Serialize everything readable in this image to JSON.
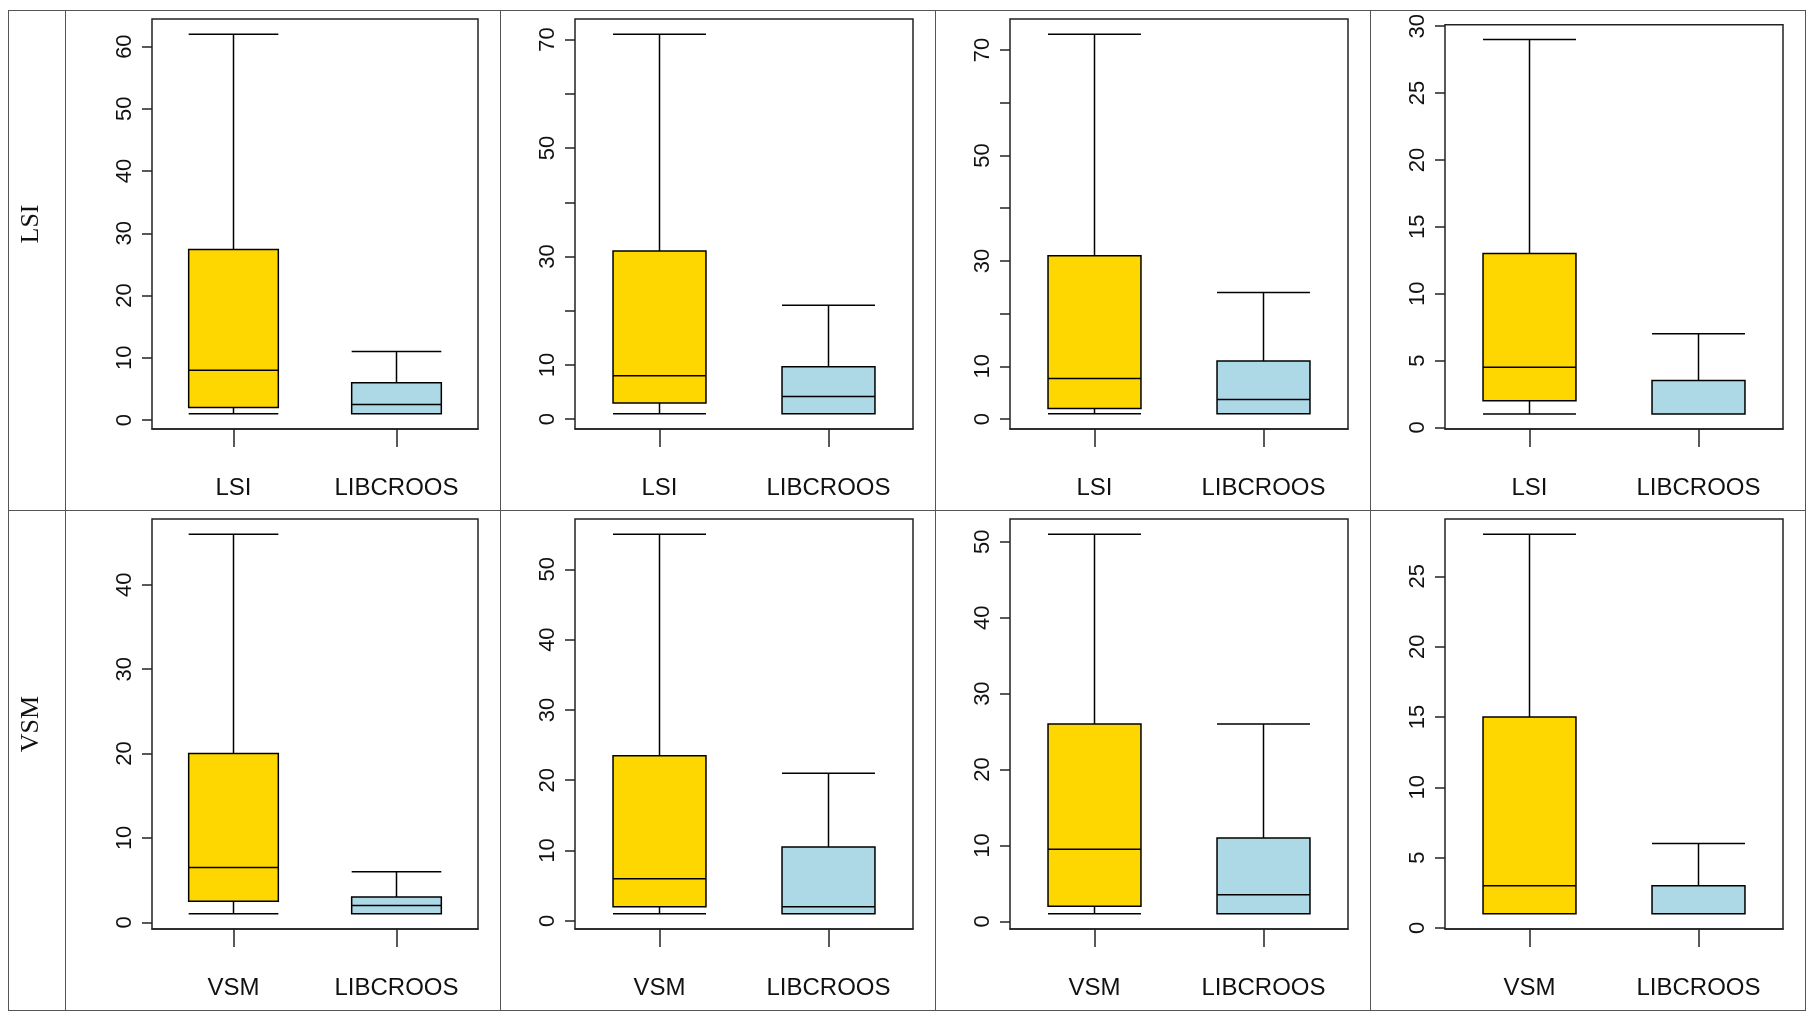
{
  "chart_data": [
    {
      "type": "box",
      "ylabel": "LSI",
      "categories": [
        "LSI",
        "LIBCROOS"
      ],
      "colors": [
        "#ffd700",
        "#add8e6"
      ],
      "ylim": [
        -1.44,
        64.44
      ],
      "yticks": [
        0,
        10,
        20,
        30,
        40,
        50,
        60
      ],
      "boxes": [
        {
          "low": 1,
          "q1": 2,
          "median": 8,
          "q3": 27.4,
          "high": 62
        },
        {
          "low": 1,
          "q1": 1,
          "median": 2.5,
          "q3": 6,
          "high": 11
        }
      ]
    },
    {
      "type": "box",
      "categories": [
        "LSI",
        "LIBCROOS"
      ],
      "colors": [
        "#ffd700",
        "#add8e6"
      ],
      "ylim": [
        -1.8,
        73.8
      ],
      "yticks": [
        0,
        10,
        {
          "value": 20,
          "label": null
        },
        30,
        {
          "value": 40,
          "label": null
        },
        50,
        {
          "value": 60,
          "label": null
        },
        70
      ],
      "boxes": [
        {
          "low": 1,
          "q1": 3,
          "median": 8,
          "q3": 31,
          "high": 71
        },
        {
          "low": 1,
          "q1": 1,
          "median": 4.2,
          "q3": 9.7,
          "high": 21
        }
      ]
    },
    {
      "type": "box",
      "categories": [
        "LSI",
        "LIBCROOS"
      ],
      "colors": [
        "#ffd700",
        "#add8e6"
      ],
      "ylim": [
        -1.88,
        75.88
      ],
      "yticks": [
        0,
        10,
        {
          "value": 20,
          "label": null
        },
        30,
        {
          "value": 40,
          "label": null
        },
        50,
        {
          "value": 60,
          "label": null
        },
        70
      ],
      "boxes": [
        {
          "low": 1,
          "q1": 2,
          "median": 7.7,
          "q3": 31,
          "high": 73
        },
        {
          "low": 1,
          "q1": 1,
          "median": 3.7,
          "q3": 11,
          "high": 24
        }
      ]
    },
    {
      "type": "box",
      "categories": [
        "LSI",
        "LIBCROOS"
      ],
      "colors": [
        "#ffd700",
        "#add8e6"
      ],
      "ylim": [
        -0.12,
        30.12
      ],
      "yticks": [
        0,
        5,
        10,
        15,
        20,
        25,
        30
      ],
      "boxes": [
        {
          "low": 1,
          "q1": 2,
          "median": 4.5,
          "q3": 13,
          "high": 29
        },
        {
          "low": 1,
          "q1": 1,
          "median": 1,
          "q3": 3.5,
          "high": 7
        }
      ]
    },
    {
      "type": "box",
      "ylabel": "VSM",
      "categories": [
        "VSM",
        "LIBCROOS"
      ],
      "colors": [
        "#ffd700",
        "#add8e6"
      ],
      "ylim": [
        -0.8,
        47.8
      ],
      "yticks": [
        0,
        10,
        20,
        30,
        40
      ],
      "boxes": [
        {
          "low": 1,
          "q1": 2.5,
          "median": 6.5,
          "q3": 20,
          "high": 46
        },
        {
          "low": 1,
          "q1": 1,
          "median": 2,
          "q3": 3,
          "high": 6
        }
      ]
    },
    {
      "type": "box",
      "categories": [
        "VSM",
        "LIBCROOS"
      ],
      "colors": [
        "#ffd700",
        "#add8e6"
      ],
      "ylim": [
        -1.16,
        57.16
      ],
      "yticks": [
        0,
        10,
        20,
        30,
        40,
        50
      ],
      "boxes": [
        {
          "low": 1,
          "q1": 2,
          "median": 6,
          "q3": 23.5,
          "high": 55
        },
        {
          "low": 1,
          "q1": 1,
          "median": 2,
          "q3": 10.5,
          "high": 21
        }
      ]
    },
    {
      "type": "box",
      "categories": [
        "VSM",
        "LIBCROOS"
      ],
      "colors": [
        "#ffd700",
        "#add8e6"
      ],
      "ylim": [
        -1,
        53
      ],
      "yticks": [
        0,
        10,
        20,
        30,
        40,
        50
      ],
      "boxes": [
        {
          "low": 1,
          "q1": 2,
          "median": 9.5,
          "q3": 26,
          "high": 51
        },
        {
          "low": 1,
          "q1": 1,
          "median": 3.5,
          "q3": 11,
          "high": 26
        }
      ]
    },
    {
      "type": "box",
      "categories": [
        "VSM",
        "LIBCROOS"
      ],
      "colors": [
        "#ffd700",
        "#add8e6"
      ],
      "ylim": [
        -0.08,
        29.08
      ],
      "yticks": [
        0,
        5,
        10,
        15,
        20,
        25
      ],
      "boxes": [
        {
          "low": 1,
          "q1": 1,
          "median": 3,
          "q3": 15,
          "high": 28
        },
        {
          "low": 1,
          "q1": 1,
          "median": 1,
          "q3": 3,
          "high": 6
        }
      ]
    }
  ]
}
